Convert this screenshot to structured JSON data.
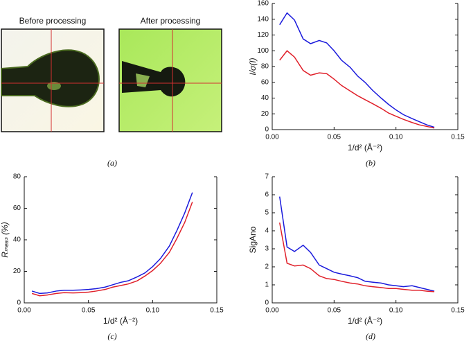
{
  "panels": {
    "before_label": "Before processing",
    "after_label": "After processing",
    "caption": "(a)"
  },
  "chart_data": [
    {
      "type": "line",
      "caption": "(b)",
      "xlabel": "1/d² (Å⁻²)",
      "ylabel": "I/σ(I)",
      "x": [
        0.006,
        0.012,
        0.018,
        0.025,
        0.031,
        0.038,
        0.044,
        0.05,
        0.056,
        0.063,
        0.069,
        0.075,
        0.081,
        0.088,
        0.094,
        0.1,
        0.106,
        0.113,
        0.119,
        0.125,
        0.131
      ],
      "series": [
        {
          "color": "#1a1adc",
          "values": [
            133,
            148,
            139,
            115,
            109,
            113,
            110,
            100,
            88,
            79,
            68,
            60,
            50,
            40,
            32,
            25,
            19,
            14,
            10,
            6,
            3
          ]
        },
        {
          "color": "#e0202a",
          "values": [
            88,
            100,
            92,
            75,
            69,
            72,
            71,
            64,
            56,
            49,
            43,
            38,
            33,
            27,
            21,
            17,
            13,
            9,
            6,
            4,
            2
          ]
        }
      ],
      "xlim": [
        0,
        0.15
      ],
      "xticks": [
        {
          "value": 0,
          "label": "0.00"
        },
        0.05,
        {
          "value": 0.1,
          "label": "0.10"
        },
        0.15
      ],
      "ylim": [
        0,
        160
      ],
      "yticks": [
        0,
        20,
        40,
        60,
        80,
        100,
        120,
        140,
        160
      ]
    },
    {
      "type": "line",
      "caption": "(c)",
      "xlabel": "1/d² (Å⁻²)",
      "ylabel": "Rₘₑₐₛ (%)",
      "x": [
        0.006,
        0.012,
        0.018,
        0.025,
        0.031,
        0.038,
        0.044,
        0.05,
        0.056,
        0.063,
        0.069,
        0.075,
        0.081,
        0.088,
        0.094,
        0.1,
        0.106,
        0.113,
        0.119,
        0.125,
        0.131
      ],
      "series": [
        {
          "color": "#1a1adc",
          "values": [
            7.5,
            6,
            6.3,
            7.5,
            8,
            8,
            8.2,
            8.5,
            9,
            10,
            11.5,
            13,
            14,
            16.5,
            19,
            23,
            28,
            36,
            46,
            57,
            70
          ]
        },
        {
          "color": "#e0202a",
          "values": [
            6,
            4.5,
            5,
            6,
            6.5,
            6.3,
            6.5,
            6.8,
            7.5,
            8.5,
            10,
            11,
            12,
            14,
            17,
            20.5,
            25,
            32,
            41,
            51,
            64
          ]
        }
      ],
      "xlim": [
        0,
        0.15
      ],
      "xticks": [
        {
          "value": 0,
          "label": "0.00"
        },
        0.05,
        {
          "value": 0.1,
          "label": "0.10"
        },
        0.15
      ],
      "ylim": [
        0,
        80
      ],
      "yticks": [
        0,
        20,
        40,
        60,
        80
      ]
    },
    {
      "type": "line",
      "caption": "(d)",
      "xlabel": "1/d² (Å⁻²)",
      "ylabel": "SigAno",
      "x": [
        0.006,
        0.012,
        0.018,
        0.025,
        0.031,
        0.038,
        0.044,
        0.05,
        0.056,
        0.063,
        0.069,
        0.075,
        0.081,
        0.088,
        0.094,
        0.1,
        0.106,
        0.113,
        0.119,
        0.125,
        0.131
      ],
      "series": [
        {
          "color": "#1a1adc",
          "values": [
            5.9,
            3.1,
            2.85,
            3.2,
            2.8,
            2.1,
            1.9,
            1.7,
            1.6,
            1.5,
            1.4,
            1.2,
            1.15,
            1.1,
            1.0,
            0.95,
            0.9,
            0.95,
            0.85,
            0.75,
            0.65
          ]
        },
        {
          "color": "#e0202a",
          "values": [
            4.45,
            2.2,
            2.05,
            2.1,
            1.9,
            1.5,
            1.35,
            1.3,
            1.2,
            1.1,
            1.05,
            0.95,
            0.9,
            0.85,
            0.8,
            0.8,
            0.75,
            0.7,
            0.7,
            0.65,
            0.62
          ]
        }
      ],
      "xlim": [
        0,
        0.15
      ],
      "xticks": [
        {
          "value": 0,
          "label": "0.00"
        },
        0.05,
        {
          "value": 0.1,
          "label": "0.10"
        },
        0.15
      ],
      "ylim": [
        0,
        7
      ],
      "yticks": [
        0,
        1,
        2,
        3,
        4,
        5,
        6,
        7
      ]
    }
  ]
}
